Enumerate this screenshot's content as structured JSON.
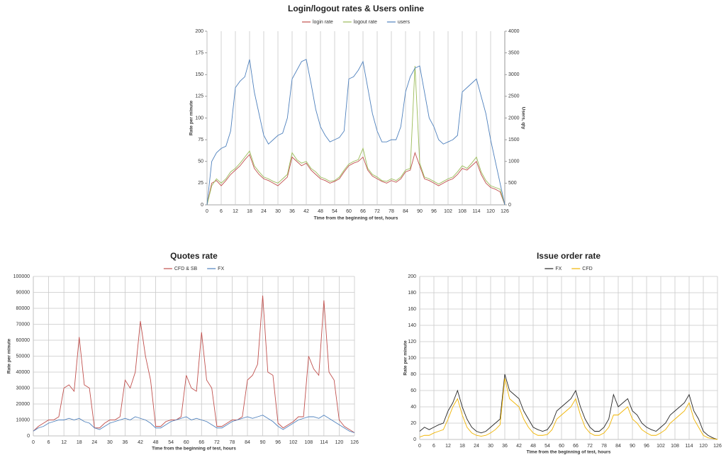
{
  "chart_data": [
    {
      "type": "line",
      "title": "Login/logout rates & Users online",
      "xlabel": "Time from the beginning of test, hours",
      "ylabel": "Rate per minute",
      "y2label": "Users, qty",
      "x": [
        0,
        2,
        4,
        6,
        8,
        10,
        12,
        14,
        16,
        18,
        20,
        22,
        24,
        26,
        28,
        30,
        32,
        34,
        36,
        38,
        40,
        42,
        44,
        46,
        48,
        50,
        52,
        54,
        56,
        58,
        60,
        62,
        64,
        66,
        68,
        70,
        72,
        74,
        76,
        78,
        80,
        82,
        84,
        86,
        88,
        90,
        92,
        94,
        96,
        98,
        100,
        102,
        104,
        106,
        108,
        110,
        112,
        114,
        116,
        118,
        120,
        122,
        124,
        126
      ],
      "xlim": [
        0,
        126
      ],
      "xticks": [
        0,
        6,
        12,
        18,
        24,
        30,
        36,
        42,
        48,
        54,
        60,
        66,
        72,
        78,
        84,
        90,
        96,
        102,
        108,
        114,
        120,
        126
      ],
      "ylim": [
        0,
        200
      ],
      "yticks": [
        0,
        25,
        50,
        75,
        100,
        125,
        150,
        175,
        200
      ],
      "y2lim": [
        0,
        4000
      ],
      "y2ticks": [
        0,
        500,
        1000,
        1500,
        2000,
        2500,
        3000,
        3500,
        4000
      ],
      "xgrid": true,
      "ygrid": false,
      "series": [
        {
          "name": "login rate",
          "color": "#c0504d",
          "values": [
            0,
            25,
            28,
            22,
            28,
            35,
            40,
            45,
            52,
            58,
            42,
            35,
            30,
            28,
            25,
            22,
            27,
            32,
            55,
            50,
            45,
            48,
            40,
            35,
            30,
            28,
            25,
            27,
            30,
            38,
            45,
            48,
            50,
            55,
            40,
            33,
            30,
            27,
            25,
            28,
            26,
            30,
            38,
            40,
            60,
            45,
            30,
            28,
            25,
            22,
            25,
            28,
            30,
            35,
            42,
            40,
            45,
            50,
            35,
            25,
            20,
            18,
            15,
            0
          ]
        },
        {
          "name": "logout rate",
          "color": "#9bbb59",
          "values": [
            0,
            22,
            30,
            25,
            30,
            38,
            42,
            48,
            55,
            62,
            45,
            38,
            32,
            30,
            27,
            25,
            30,
            35,
            60,
            52,
            48,
            50,
            42,
            38,
            32,
            30,
            27,
            28,
            32,
            40,
            47,
            50,
            52,
            65,
            42,
            35,
            32,
            28,
            27,
            30,
            28,
            32,
            40,
            42,
            160,
            48,
            32,
            30,
            27,
            24,
            27,
            30,
            32,
            38,
            45,
            42,
            48,
            55,
            38,
            28,
            22,
            20,
            18,
            0
          ]
        },
        {
          "name": "users",
          "color": "#4f81bd",
          "axis": "y2",
          "values": [
            0,
            1000,
            1200,
            1300,
            1350,
            1700,
            2700,
            2850,
            2950,
            3350,
            2600,
            2100,
            1600,
            1400,
            1500,
            1600,
            1650,
            2000,
            2900,
            3100,
            3300,
            3350,
            2800,
            2200,
            1800,
            1600,
            1450,
            1500,
            1550,
            1700,
            2900,
            2950,
            3100,
            3300,
            2700,
            2100,
            1700,
            1450,
            1450,
            1500,
            1500,
            1800,
            2600,
            2950,
            3150,
            3200,
            2600,
            2000,
            1800,
            1500,
            1400,
            1450,
            1500,
            1600,
            2600,
            2700,
            2800,
            2900,
            2500,
            2100,
            1500,
            1000,
            500,
            0
          ]
        }
      ]
    },
    {
      "type": "line",
      "title": "Quotes rate",
      "xlabel": "Time from the beginning of test, hours",
      "ylabel": "Rate per minute",
      "x": [
        0,
        2,
        4,
        6,
        8,
        10,
        12,
        14,
        16,
        18,
        20,
        22,
        24,
        26,
        28,
        30,
        32,
        34,
        36,
        38,
        40,
        42,
        44,
        46,
        48,
        50,
        52,
        54,
        56,
        58,
        60,
        62,
        64,
        66,
        68,
        70,
        72,
        74,
        76,
        78,
        80,
        82,
        84,
        86,
        88,
        90,
        92,
        94,
        96,
        98,
        100,
        102,
        104,
        106,
        108,
        110,
        112,
        114,
        116,
        118,
        120,
        122,
        124,
        126
      ],
      "xlim": [
        0,
        126
      ],
      "xticks": [
        0,
        6,
        12,
        18,
        24,
        30,
        36,
        42,
        48,
        54,
        60,
        66,
        72,
        78,
        84,
        90,
        96,
        102,
        108,
        114,
        120,
        126
      ],
      "ylim": [
        0,
        100000
      ],
      "yticks": [
        0,
        10000,
        20000,
        30000,
        40000,
        50000,
        60000,
        70000,
        80000,
        90000,
        100000
      ],
      "xgrid": true,
      "ygrid": true,
      "series": [
        {
          "name": "CFD & SB",
          "color": "#c0504d",
          "values": [
            3000,
            6000,
            8000,
            10000,
            10000,
            12000,
            30000,
            32000,
            28000,
            62000,
            32000,
            30000,
            5000,
            5000,
            8000,
            10000,
            10000,
            12000,
            35000,
            30000,
            40000,
            72000,
            50000,
            35000,
            6000,
            6000,
            9000,
            10000,
            10000,
            12000,
            38000,
            30000,
            28000,
            65000,
            35000,
            30000,
            6000,
            6000,
            8000,
            10000,
            10000,
            12000,
            35000,
            38000,
            45000,
            88000,
            40000,
            38000,
            8000,
            5000,
            7000,
            9000,
            12000,
            12000,
            50000,
            42000,
            38000,
            85000,
            40000,
            35000,
            10000,
            6000,
            4000,
            2000
          ]
        },
        {
          "name": "FX",
          "color": "#4f81bd",
          "values": [
            3000,
            5000,
            6000,
            8000,
            9000,
            10000,
            10000,
            11000,
            10000,
            11000,
            9000,
            8000,
            5000,
            4000,
            6000,
            8000,
            9000,
            10000,
            11000,
            10000,
            12000,
            11000,
            10000,
            8000,
            5000,
            5000,
            7000,
            9000,
            10000,
            11000,
            12000,
            10000,
            11000,
            10000,
            9000,
            7000,
            5000,
            5000,
            7000,
            9000,
            10000,
            11000,
            12000,
            11000,
            12000,
            13000,
            11000,
            9000,
            6000,
            4000,
            6000,
            8000,
            10000,
            11000,
            12000,
            12000,
            11000,
            13000,
            11000,
            9000,
            7000,
            5000,
            3000,
            2000
          ]
        }
      ]
    },
    {
      "type": "line",
      "title": "Issue order rate",
      "xlabel": "Time from the beginning of test, hours",
      "ylabel": "Rate per minute",
      "x": [
        0,
        2,
        4,
        6,
        8,
        10,
        12,
        14,
        16,
        18,
        20,
        22,
        24,
        26,
        28,
        30,
        32,
        34,
        36,
        38,
        40,
        42,
        44,
        46,
        48,
        50,
        52,
        54,
        56,
        58,
        60,
        62,
        64,
        66,
        68,
        70,
        72,
        74,
        76,
        78,
        80,
        82,
        84,
        86,
        88,
        90,
        92,
        94,
        96,
        98,
        100,
        102,
        104,
        106,
        108,
        110,
        112,
        114,
        116,
        118,
        120,
        122,
        124,
        126
      ],
      "xlim": [
        0,
        126
      ],
      "xticks": [
        0,
        6,
        12,
        18,
        24,
        30,
        36,
        42,
        48,
        54,
        60,
        66,
        72,
        78,
        84,
        90,
        96,
        102,
        108,
        114,
        120,
        126
      ],
      "ylim": [
        0,
        200
      ],
      "yticks": [
        0,
        20,
        40,
        60,
        80,
        100,
        120,
        140,
        160,
        180,
        200
      ],
      "xgrid": true,
      "ygrid": true,
      "series": [
        {
          "name": "FX",
          "color": "#262626",
          "values": [
            10,
            15,
            12,
            15,
            18,
            20,
            35,
            45,
            60,
            40,
            25,
            15,
            10,
            8,
            10,
            15,
            20,
            25,
            80,
            60,
            55,
            50,
            35,
            25,
            15,
            12,
            10,
            12,
            20,
            35,
            40,
            45,
            50,
            60,
            40,
            25,
            15,
            10,
            10,
            15,
            25,
            55,
            40,
            45,
            50,
            35,
            30,
            20,
            15,
            12,
            10,
            15,
            20,
            30,
            35,
            40,
            45,
            55,
            35,
            25,
            10,
            5,
            2,
            0
          ]
        },
        {
          "name": "CFD",
          "color": "#f0b400",
          "values": [
            3,
            5,
            5,
            8,
            10,
            12,
            25,
            40,
            50,
            30,
            15,
            8,
            5,
            4,
            5,
            8,
            12,
            18,
            75,
            50,
            45,
            40,
            25,
            15,
            8,
            5,
            5,
            6,
            12,
            25,
            30,
            35,
            40,
            50,
            30,
            15,
            8,
            5,
            5,
            8,
            15,
            30,
            30,
            35,
            40,
            25,
            20,
            12,
            8,
            5,
            5,
            8,
            12,
            20,
            25,
            30,
            35,
            45,
            25,
            15,
            5,
            2,
            1,
            0
          ]
        }
      ]
    }
  ]
}
